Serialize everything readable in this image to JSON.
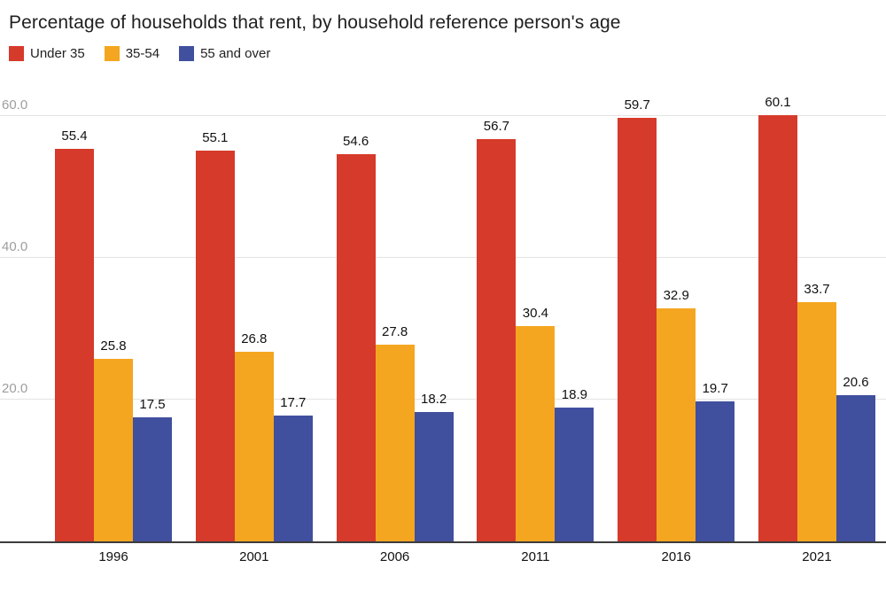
{
  "title": "Percentage of households that rent, by household reference person's age",
  "chart_data": {
    "type": "bar",
    "title": "Percentage of households that rent, by household reference person's age",
    "categories": [
      "1996",
      "2001",
      "2006",
      "2011",
      "2016",
      "2021"
    ],
    "series": [
      {
        "name": "Under 35",
        "color": "#d63a2a",
        "values": [
          55.4,
          55.1,
          54.6,
          56.7,
          59.7,
          60.1
        ]
      },
      {
        "name": "35-54",
        "color": "#f4a621",
        "values": [
          25.8,
          26.8,
          27.8,
          30.4,
          32.9,
          33.7
        ]
      },
      {
        "name": "55 and over",
        "color": "#404f9e",
        "values": [
          17.5,
          17.7,
          18.2,
          18.9,
          19.7,
          20.6
        ]
      }
    ],
    "xlabel": "",
    "ylabel": "",
    "ylim": [
      0,
      64
    ],
    "yticks": [
      {
        "value": 20,
        "label": "20.0"
      },
      {
        "value": 40,
        "label": "40.0"
      },
      {
        "value": 60,
        "label": "60.0"
      }
    ],
    "grid": true,
    "legend_position": "top-left",
    "value_labels": true
  }
}
